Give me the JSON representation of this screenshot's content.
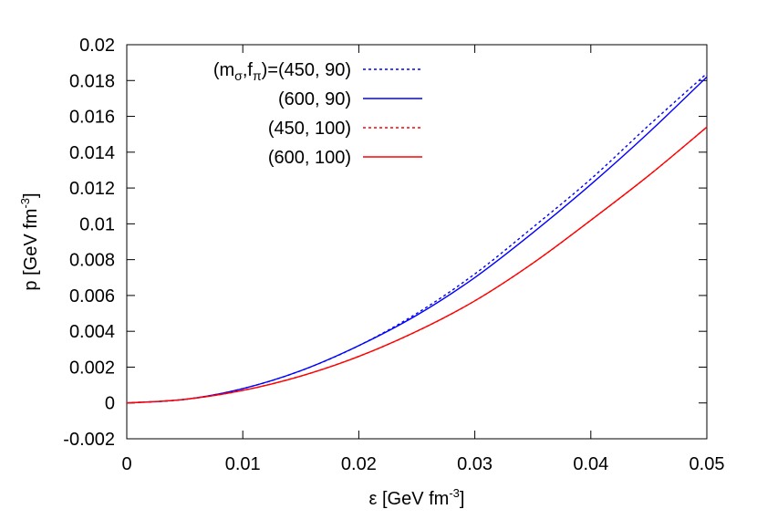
{
  "chart_data": {
    "type": "line",
    "xlabel": {
      "base": "ε [GeV fm",
      "sup": "-3",
      "tail": "]"
    },
    "ylabel": {
      "base": "p [GeV fm",
      "sup": "-3",
      "tail": "]"
    },
    "xlim": [
      0,
      0.05
    ],
    "ylim": [
      -0.002,
      0.02
    ],
    "x_ticks": [
      "0",
      "0.01",
      "0.02",
      "0.03",
      "0.04",
      "0.05"
    ],
    "y_ticks": [
      "-0.002",
      "0",
      "0.002",
      "0.004",
      "0.006",
      "0.008",
      "0.01",
      "0.012",
      "0.014",
      "0.016",
      "0.018",
      "0.02"
    ],
    "grid": false,
    "legend_position": "top-left",
    "legend_prefix": {
      "open": "(m",
      "sub1": "σ",
      "sep": ",f",
      "sub2": "π",
      "close": ")="
    },
    "series": [
      {
        "name": "(450, 90)",
        "color": "#0000ff",
        "dash": "dotted",
        "x": [
          0,
          0.005,
          0.01,
          0.015,
          0.02,
          0.025,
          0.03,
          0.035,
          0.04,
          0.045,
          0.05
        ],
        "y": [
          0,
          0.0002,
          0.0008,
          0.0018,
          0.0032,
          0.005,
          0.0072,
          0.0098,
          0.0125,
          0.0155,
          0.0184
        ]
      },
      {
        "name": "(600, 90)",
        "color": "#0000ff",
        "dash": "solid",
        "x": [
          0,
          0.005,
          0.01,
          0.015,
          0.02,
          0.025,
          0.03,
          0.035,
          0.04,
          0.045,
          0.05
        ],
        "y": [
          0,
          0.0002,
          0.0008,
          0.0018,
          0.0032,
          0.0049,
          0.007,
          0.0095,
          0.0122,
          0.0151,
          0.0182
        ]
      },
      {
        "name": "(450, 100)",
        "color": "#ff0000",
        "dash": "dotted",
        "x": [
          0,
          0.005,
          0.01,
          0.015,
          0.02,
          0.025,
          0.03,
          0.035,
          0.04,
          0.045,
          0.05
        ],
        "y": [
          0,
          0.0002,
          0.0007,
          0.0015,
          0.0026,
          0.004,
          0.0057,
          0.0078,
          0.0102,
          0.0127,
          0.0154
        ]
      },
      {
        "name": "(600, 100)",
        "color": "#ff0000",
        "dash": "solid",
        "x": [
          0,
          0.005,
          0.01,
          0.015,
          0.02,
          0.025,
          0.03,
          0.035,
          0.04,
          0.045,
          0.05
        ],
        "y": [
          0,
          0.0002,
          0.0007,
          0.0015,
          0.0026,
          0.004,
          0.0057,
          0.0078,
          0.0102,
          0.0127,
          0.0154
        ]
      }
    ]
  }
}
